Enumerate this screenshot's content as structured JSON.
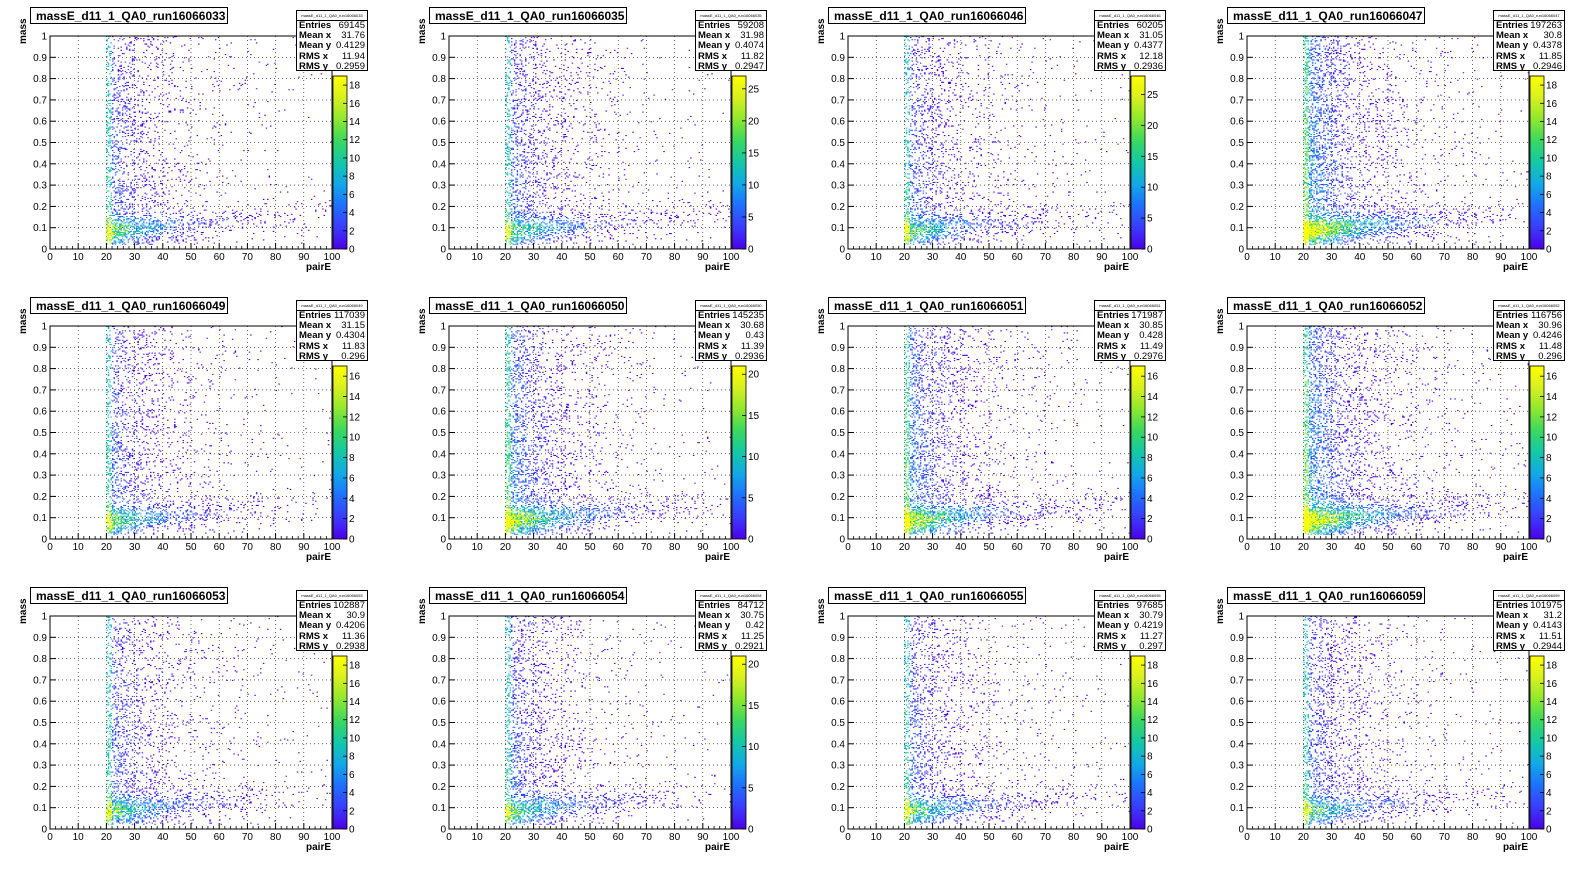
{
  "x_axis_label": "pairE",
  "y_axis_label": "mass",
  "stats_labels": {
    "entries": "Entries",
    "mean_x": "Mean x",
    "mean_y": "Mean y",
    "rms_x": "RMS x",
    "rms_y": "RMS y"
  },
  "palette": [
    "#ffffff",
    "#4b00e6",
    "#3b3bff",
    "#1f6fff",
    "#12a8e8",
    "#14c8a8",
    "#3ad860",
    "#8ee82e",
    "#d8f020",
    "#ffff00"
  ],
  "chart_data": [
    {
      "type": "heatmap",
      "title": "massE_d11_1_QA0_run16066033",
      "xlabel": "pairE",
      "ylabel": "mass",
      "xlim": [
        0,
        100
      ],
      "ylim": [
        0,
        1
      ],
      "x_ticks": [
        0,
        10,
        20,
        30,
        40,
        50,
        60,
        70,
        80,
        90,
        100
      ],
      "y_ticks": [
        0,
        0.1,
        0.2,
        0.3,
        0.4,
        0.5,
        0.6,
        0.7,
        0.8,
        0.9,
        1
      ],
      "z_ticks": [
        0,
        2,
        4,
        6,
        8,
        10,
        12,
        14,
        16,
        18
      ],
      "z_max": 19,
      "grid": true,
      "stats": {
        "entries": "69145",
        "mean_x": "31.76",
        "mean_y": "0.4129",
        "rms_x": "11.94",
        "rms_y": "0.2959"
      }
    },
    {
      "type": "heatmap",
      "title": "massE_d11_1_QA0_run16066035",
      "xlabel": "pairE",
      "ylabel": "mass",
      "xlim": [
        0,
        100
      ],
      "ylim": [
        0,
        1
      ],
      "x_ticks": [
        0,
        10,
        20,
        30,
        40,
        50,
        60,
        70,
        80,
        90,
        100
      ],
      "y_ticks": [
        0,
        0.1,
        0.2,
        0.3,
        0.4,
        0.5,
        0.6,
        0.7,
        0.8,
        0.9,
        1
      ],
      "z_ticks": [
        0,
        5,
        10,
        15,
        20,
        25
      ],
      "z_max": 27,
      "grid": true,
      "stats": {
        "entries": "59208",
        "mean_x": "31.98",
        "mean_y": "0.4074",
        "rms_x": "11.82",
        "rms_y": "0.2947"
      }
    },
    {
      "type": "heatmap",
      "title": "massE_d11_1_QA0_run16066046",
      "xlabel": "pairE",
      "ylabel": "mass",
      "xlim": [
        0,
        100
      ],
      "ylim": [
        0,
        1
      ],
      "x_ticks": [
        0,
        10,
        20,
        30,
        40,
        50,
        60,
        70,
        80,
        90,
        100
      ],
      "y_ticks": [
        0,
        0.1,
        0.2,
        0.3,
        0.4,
        0.5,
        0.6,
        0.7,
        0.8,
        0.9,
        1
      ],
      "z_ticks": [
        0,
        5,
        10,
        15,
        20,
        25
      ],
      "z_max": 28,
      "grid": true,
      "stats": {
        "entries": "60205",
        "mean_x": "31.05",
        "mean_y": "0.4377",
        "rms_x": "12.18",
        "rms_y": "0.2936"
      }
    },
    {
      "type": "heatmap",
      "title": "massE_d11_1_QA0_run16066047",
      "xlabel": "pairE",
      "ylabel": "mass",
      "xlim": [
        0,
        100
      ],
      "ylim": [
        0,
        1
      ],
      "x_ticks": [
        0,
        10,
        20,
        30,
        40,
        50,
        60,
        70,
        80,
        90,
        100
      ],
      "y_ticks": [
        0,
        0.1,
        0.2,
        0.3,
        0.4,
        0.5,
        0.6,
        0.7,
        0.8,
        0.9,
        1
      ],
      "z_ticks": [
        0,
        2,
        4,
        6,
        8,
        10,
        12,
        14,
        16,
        18
      ],
      "z_max": 19,
      "grid": true,
      "stats": {
        "entries": "197263",
        "mean_x": "30.8",
        "mean_y": "0.4378",
        "rms_x": "11.85",
        "rms_y": "0.2946"
      }
    },
    {
      "type": "heatmap",
      "title": "massE_d11_1_QA0_run16066049",
      "xlabel": "pairE",
      "ylabel": "mass",
      "xlim": [
        0,
        100
      ],
      "ylim": [
        0,
        1
      ],
      "x_ticks": [
        0,
        10,
        20,
        30,
        40,
        50,
        60,
        70,
        80,
        90,
        100
      ],
      "y_ticks": [
        0,
        0.1,
        0.2,
        0.3,
        0.4,
        0.5,
        0.6,
        0.7,
        0.8,
        0.9,
        1
      ],
      "z_ticks": [
        0,
        2,
        4,
        6,
        8,
        10,
        12,
        14,
        16
      ],
      "z_max": 17,
      "grid": true,
      "stats": {
        "entries": "117039",
        "mean_x": "31.15",
        "mean_y": "0.4304",
        "rms_x": "11.83",
        "rms_y": "0.296"
      }
    },
    {
      "type": "heatmap",
      "title": "massE_d11_1_QA0_run16066050",
      "xlabel": "pairE",
      "ylabel": "mass",
      "xlim": [
        0,
        100
      ],
      "ylim": [
        0,
        1
      ],
      "x_ticks": [
        0,
        10,
        20,
        30,
        40,
        50,
        60,
        70,
        80,
        90,
        100
      ],
      "y_ticks": [
        0,
        0.1,
        0.2,
        0.3,
        0.4,
        0.5,
        0.6,
        0.7,
        0.8,
        0.9,
        1
      ],
      "z_ticks": [
        0,
        5,
        10,
        15,
        20
      ],
      "z_max": 21,
      "grid": true,
      "stats": {
        "entries": "145235",
        "mean_x": "30.68",
        "mean_y": "0.43",
        "rms_x": "11.39",
        "rms_y": "0.2936"
      }
    },
    {
      "type": "heatmap",
      "title": "massE_d11_1_QA0_run16066051",
      "xlabel": "pairE",
      "ylabel": "mass",
      "xlim": [
        0,
        100
      ],
      "ylim": [
        0,
        1
      ],
      "x_ticks": [
        0,
        10,
        20,
        30,
        40,
        50,
        60,
        70,
        80,
        90,
        100
      ],
      "y_ticks": [
        0,
        0.1,
        0.2,
        0.3,
        0.4,
        0.5,
        0.6,
        0.7,
        0.8,
        0.9,
        1
      ],
      "z_ticks": [
        0,
        2,
        4,
        6,
        8,
        10,
        12,
        14,
        16
      ],
      "z_max": 17,
      "grid": true,
      "stats": {
        "entries": "171987",
        "mean_x": "30.85",
        "mean_y": "0.428",
        "rms_x": "11.49",
        "rms_y": "0.2976"
      }
    },
    {
      "type": "heatmap",
      "title": "massE_d11_1_QA0_run16066052",
      "xlabel": "pairE",
      "ylabel": "mass",
      "xlim": [
        0,
        100
      ],
      "ylim": [
        0,
        1
      ],
      "x_ticks": [
        0,
        10,
        20,
        30,
        40,
        50,
        60,
        70,
        80,
        90,
        100
      ],
      "y_ticks": [
        0,
        0.1,
        0.2,
        0.3,
        0.4,
        0.5,
        0.6,
        0.7,
        0.8,
        0.9,
        1
      ],
      "z_ticks": [
        0,
        2,
        4,
        6,
        8,
        10,
        12,
        14,
        16
      ],
      "z_max": 17,
      "grid": true,
      "stats": {
        "entries": "116756",
        "mean_x": "30.96",
        "mean_y": "0.4246",
        "rms_x": "11.48",
        "rms_y": "0.296"
      }
    },
    {
      "type": "heatmap",
      "title": "massE_d11_1_QA0_run16066053",
      "xlabel": "pairE",
      "ylabel": "mass",
      "xlim": [
        0,
        100
      ],
      "ylim": [
        0,
        1
      ],
      "x_ticks": [
        0,
        10,
        20,
        30,
        40,
        50,
        60,
        70,
        80,
        90,
        100
      ],
      "y_ticks": [
        0,
        0.1,
        0.2,
        0.3,
        0.4,
        0.5,
        0.6,
        0.7,
        0.8,
        0.9,
        1
      ],
      "z_ticks": [
        0,
        2,
        4,
        6,
        8,
        10,
        12,
        14,
        16,
        18
      ],
      "z_max": 19,
      "grid": true,
      "stats": {
        "entries": "102887",
        "mean_x": "30.9",
        "mean_y": "0.4206",
        "rms_x": "11.36",
        "rms_y": "0.2938"
      }
    },
    {
      "type": "heatmap",
      "title": "massE_d11_1_QA0_run16066054",
      "xlabel": "pairE",
      "ylabel": "mass",
      "xlim": [
        0,
        100
      ],
      "ylim": [
        0,
        1
      ],
      "x_ticks": [
        0,
        10,
        20,
        30,
        40,
        50,
        60,
        70,
        80,
        90,
        100
      ],
      "y_ticks": [
        0,
        0.1,
        0.2,
        0.3,
        0.4,
        0.5,
        0.6,
        0.7,
        0.8,
        0.9,
        1
      ],
      "z_ticks": [
        0,
        5,
        10,
        15,
        20
      ],
      "z_max": 21,
      "grid": true,
      "stats": {
        "entries": "84712",
        "mean_x": "30.75",
        "mean_y": "0.42",
        "rms_x": "11.25",
        "rms_y": "0.2921"
      }
    },
    {
      "type": "heatmap",
      "title": "massE_d11_1_QA0_run16066055",
      "xlabel": "pairE",
      "ylabel": "mass",
      "xlim": [
        0,
        100
      ],
      "ylim": [
        0,
        1
      ],
      "x_ticks": [
        0,
        10,
        20,
        30,
        40,
        50,
        60,
        70,
        80,
        90,
        100
      ],
      "y_ticks": [
        0,
        0.1,
        0.2,
        0.3,
        0.4,
        0.5,
        0.6,
        0.7,
        0.8,
        0.9,
        1
      ],
      "z_ticks": [
        0,
        2,
        4,
        6,
        8,
        10,
        12,
        14,
        16,
        18
      ],
      "z_max": 19,
      "grid": true,
      "stats": {
        "entries": "97685",
        "mean_x": "30.79",
        "mean_y": "0.4219",
        "rms_x": "11.27",
        "rms_y": "0.297"
      }
    },
    {
      "type": "heatmap",
      "title": "massE_d11_1_QA0_run16066059",
      "xlabel": "pairE",
      "ylabel": "mass",
      "xlim": [
        0,
        100
      ],
      "ylim": [
        0,
        1
      ],
      "x_ticks": [
        0,
        10,
        20,
        30,
        40,
        50,
        60,
        70,
        80,
        90,
        100
      ],
      "y_ticks": [
        0,
        0.1,
        0.2,
        0.3,
        0.4,
        0.5,
        0.6,
        0.7,
        0.8,
        0.9,
        1
      ],
      "z_ticks": [
        0,
        2,
        4,
        6,
        8,
        10,
        12,
        14,
        16,
        18
      ],
      "z_max": 19,
      "grid": true,
      "stats": {
        "entries": "101975",
        "mean_x": "31.2",
        "mean_y": "0.4143",
        "rms_x": "11.51",
        "rms_y": "0.2944"
      }
    }
  ]
}
